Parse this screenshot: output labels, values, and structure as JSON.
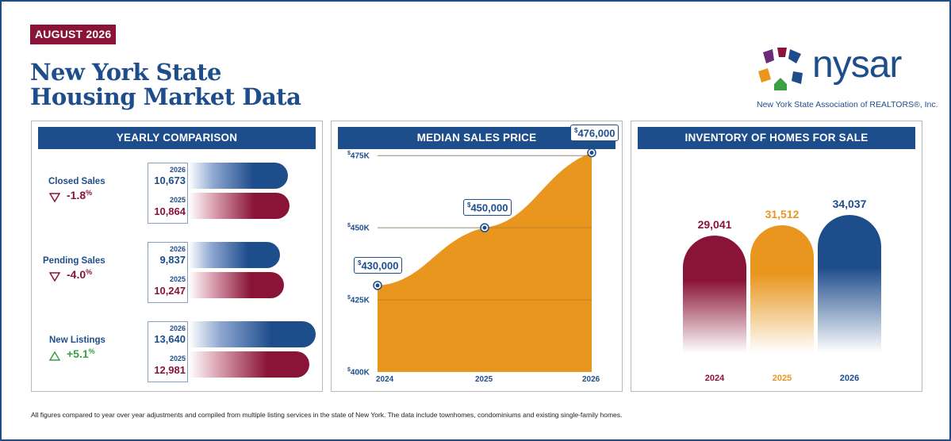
{
  "header": {
    "badge": "AUGUST 2026",
    "title_line1": "New York State",
    "title_line2": "Housing Market Data"
  },
  "logo": {
    "wordmark": "nysar",
    "subtitle": "New York State Association of REALTORS®, Inc."
  },
  "colors": {
    "navy": "#1e4d8c",
    "maroon": "#8a1438",
    "orange": "#e8961e",
    "green": "#3aa043"
  },
  "yearly": {
    "title": "YEARLY COMPARISON",
    "metrics": [
      {
        "label": "Closed Sales",
        "direction": "down",
        "change": "-1.8",
        "pct": "%",
        "current_year": "2026",
        "current_value": "10,673",
        "prior_year": "2025",
        "prior_value": "10,864"
      },
      {
        "label": "Pending Sales",
        "direction": "down",
        "change": "-4.0",
        "pct": "%",
        "current_year": "2026",
        "current_value": "9,837",
        "prior_year": "2025",
        "prior_value": "10,247"
      },
      {
        "label": "New Listings",
        "direction": "up",
        "change": "+5.1",
        "pct": "%",
        "current_year": "2026",
        "current_value": "13,640",
        "prior_year": "2025",
        "prior_value": "12,981"
      }
    ]
  },
  "chart_data": [
    {
      "type": "area",
      "title": "MEDIAN SALES PRICE",
      "x": [
        "2024",
        "2025",
        "2026"
      ],
      "values": [
        430000,
        450000,
        476000
      ],
      "labels": [
        "430,000",
        "450,000",
        "476,000"
      ],
      "currency": "$",
      "ylim": [
        400000,
        480000
      ],
      "yticks": [
        400000,
        425000,
        450000,
        475000
      ],
      "ytick_labels": [
        "400K",
        "425K",
        "450K",
        "475K"
      ],
      "grid": true
    },
    {
      "type": "bar",
      "title": "INVENTORY OF HOMES FOR SALE",
      "categories": [
        "2024",
        "2025",
        "2026"
      ],
      "values": [
        29041,
        31512,
        34037
      ],
      "labels": [
        "29,041",
        "31,512",
        "34,037"
      ]
    }
  ],
  "footnote": "All figures compared to year over year adjustments and compiled from multiple listing services in the state of New York. The data include townhomes, condominiums and existing single-family homes."
}
